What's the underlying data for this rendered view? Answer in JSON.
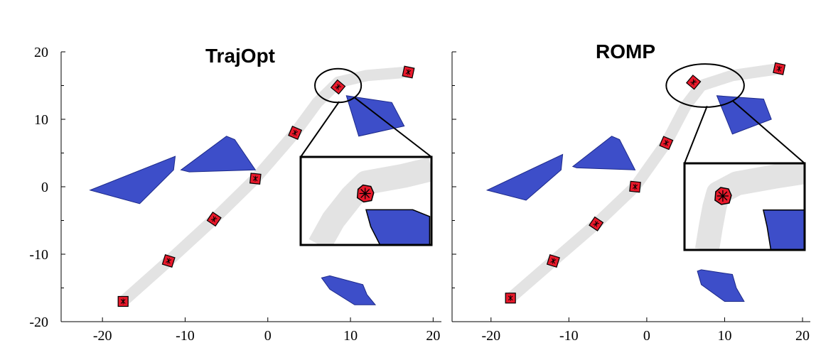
{
  "colors": {
    "obstacle": "#3d4ec9",
    "obstacle_stroke": "#1d2a8a",
    "trajectory": "#e3e3e3",
    "waypoint": "#e8182a",
    "axis": "#000000"
  },
  "chart_data": [
    {
      "type": "scatter",
      "title": "TrajOpt",
      "xlabel": "",
      "ylabel": "",
      "xlim": [
        -25,
        21
      ],
      "ylim": [
        -20,
        20
      ],
      "xticks": [
        -20,
        -10,
        0,
        10,
        20
      ],
      "xtick_labels": [
        "-20",
        "-10",
        "0",
        "10",
        "20"
      ],
      "yticks": [
        -20,
        -10,
        0,
        10,
        20
      ],
      "ytick_labels": [
        "-20",
        "-10",
        "0",
        "10",
        "20"
      ],
      "y_axis_labeled": true,
      "trajectory": [
        [
          -17.5,
          -17
        ],
        [
          -12,
          -11
        ],
        [
          -6.5,
          -4.8
        ],
        [
          -1.5,
          1.2
        ],
        [
          3.3,
          8
        ],
        [
          6,
          12.5
        ],
        [
          8.5,
          15.5
        ],
        [
          12,
          16.5
        ],
        [
          17,
          17
        ]
      ],
      "waypoints": [
        [
          -17.5,
          -17
        ],
        [
          -12,
          -11
        ],
        [
          -6.5,
          -4.8
        ],
        [
          -1.5,
          1.2
        ],
        [
          3.3,
          8
        ],
        [
          8.5,
          14.8
        ],
        [
          17,
          17
        ]
      ],
      "obstacles": [
        [
          [
            -21.5,
            -0.5
          ],
          [
            -11.2,
            4.5
          ],
          [
            -11.4,
            2.5
          ],
          [
            -15.5,
            -2.5
          ]
        ],
        [
          [
            -10.5,
            2.5
          ],
          [
            -5,
            7.5
          ],
          [
            -4,
            7
          ],
          [
            -1.5,
            2.5
          ],
          [
            -9.5,
            2.2
          ]
        ],
        [
          [
            9.5,
            13.5
          ],
          [
            15,
            12.5
          ],
          [
            16.5,
            9
          ],
          [
            11,
            7.5
          ]
        ],
        [
          [
            6.5,
            -13.5
          ],
          [
            7.5,
            -15.2
          ],
          [
            10.5,
            -17.5
          ],
          [
            13,
            -17.5
          ],
          [
            12,
            -16
          ],
          [
            11.5,
            -14.5
          ],
          [
            7.5,
            -13.2
          ]
        ]
      ],
      "zoom_circle": {
        "center": [
          8.5,
          15
        ],
        "radius": [
          2.8,
          2.5
        ]
      },
      "inset": {
        "x_range": [
          6,
          20
        ],
        "y_range": [
          -8.7,
          4.3
        ],
        "trajectory": [
          [
            8,
            -8.7
          ],
          [
            9.5,
            -5
          ],
          [
            11.5,
            -1.5
          ],
          [
            13,
            0.5
          ],
          [
            17,
            1.5
          ],
          [
            20,
            2.5
          ]
        ],
        "waypoint": [
          12.9,
          -1.1
        ],
        "obstacle": [
          [
            13,
            -3.5
          ],
          [
            18,
            -3.5
          ],
          [
            19.8,
            -4.5
          ],
          [
            19.8,
            -8.7
          ],
          [
            14.5,
            -8.7
          ],
          [
            13.5,
            -6
          ]
        ]
      }
    },
    {
      "type": "scatter",
      "title": "ROMP",
      "xlabel": "",
      "ylabel": "",
      "xlim": [
        -25,
        21
      ],
      "ylim": [
        -20,
        20
      ],
      "xticks": [
        -20,
        -10,
        0,
        10,
        20
      ],
      "xtick_labels": [
        "-20",
        "-10",
        "0",
        "10",
        "20"
      ],
      "yticks": [
        -20,
        -10,
        0,
        10,
        20
      ],
      "ytick_labels": [],
      "y_axis_labeled": false,
      "trajectory": [
        [
          -17.5,
          -16.5
        ],
        [
          -12,
          -11
        ],
        [
          -6.5,
          -5.5
        ],
        [
          -1.5,
          0
        ],
        [
          2.5,
          6.5
        ],
        [
          5,
          12
        ],
        [
          7,
          15
        ],
        [
          11,
          16.5
        ],
        [
          17,
          17.5
        ]
      ],
      "waypoints": [
        [
          -17.5,
          -16.5
        ],
        [
          -12,
          -11
        ],
        [
          -6.5,
          -5.5
        ],
        [
          -1.5,
          0
        ],
        [
          2.5,
          6.5
        ],
        [
          6,
          15.5
        ],
        [
          17,
          17.5
        ]
      ],
      "obstacles": [
        [
          [
            -20.5,
            -0.5
          ],
          [
            -10.8,
            4.8
          ],
          [
            -11,
            2.5
          ],
          [
            -15.5,
            -2
          ]
        ],
        [
          [
            -9.5,
            3
          ],
          [
            -4.5,
            7.5
          ],
          [
            -3.5,
            7
          ],
          [
            -1.5,
            2.5
          ],
          [
            -9,
            2.8
          ]
        ],
        [
          [
            9,
            13.5
          ],
          [
            15,
            13
          ],
          [
            16,
            10
          ],
          [
            11,
            7.8
          ]
        ],
        [
          [
            6.5,
            -12.5
          ],
          [
            7,
            -14.5
          ],
          [
            10,
            -17
          ],
          [
            12.5,
            -17
          ],
          [
            11.5,
            -15
          ],
          [
            11,
            -13
          ],
          [
            7,
            -12.3
          ]
        ]
      ],
      "zoom_circle": {
        "center": [
          7.5,
          15
        ],
        "radius": [
          5,
          3.2
        ]
      },
      "inset": {
        "x_range": [
          5,
          21
        ],
        "y_range": [
          -9.5,
          3.5
        ],
        "trajectory": [
          [
            8,
            -9.5
          ],
          [
            8.5,
            -6
          ],
          [
            9,
            -3
          ],
          [
            9.5,
            -1
          ],
          [
            12,
            0.5
          ],
          [
            17,
            1.5
          ],
          [
            21,
            2.2
          ]
        ],
        "waypoint": [
          10.1,
          -1.4
        ],
        "obstacle": [
          [
            15.5,
            -3.5
          ],
          [
            21,
            -3.5
          ],
          [
            21,
            -9.5
          ],
          [
            16.5,
            -9.5
          ],
          [
            16,
            -6
          ]
        ]
      }
    }
  ]
}
